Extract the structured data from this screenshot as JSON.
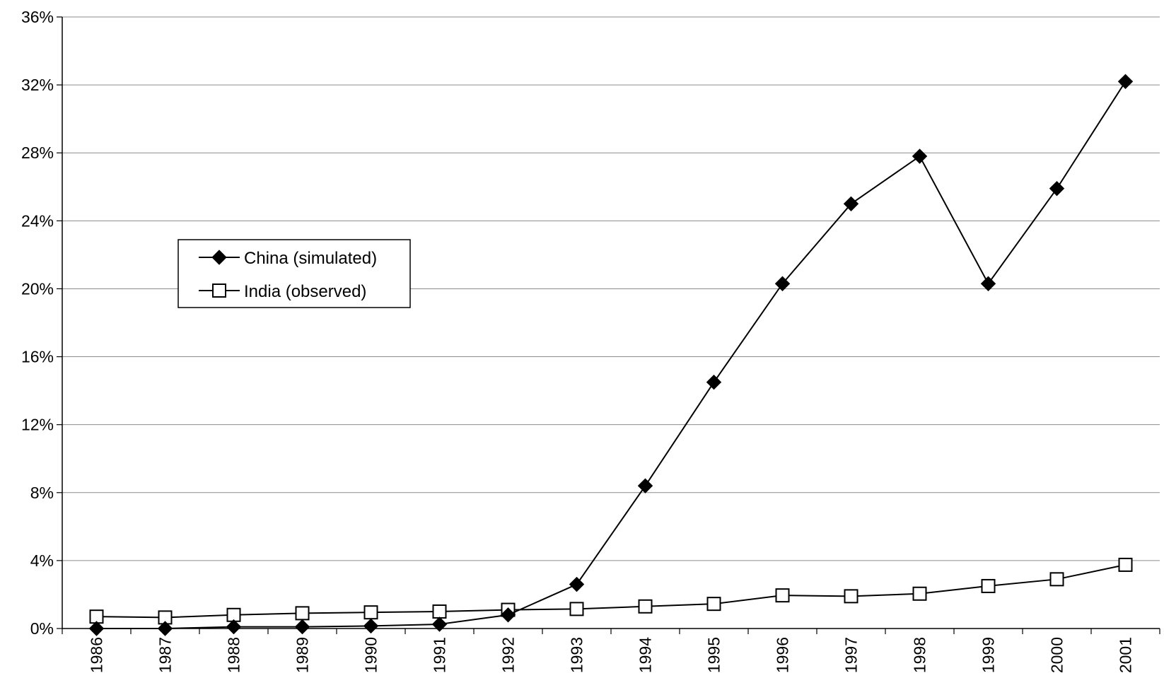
{
  "chart_data": {
    "type": "line",
    "title": "",
    "xlabel": "",
    "ylabel": "",
    "categories": [
      "1986",
      "1987",
      "1988",
      "1989",
      "1990",
      "1991",
      "1992",
      "1993",
      "1994",
      "1995",
      "1996",
      "1997",
      "1998",
      "1999",
      "2000",
      "2001"
    ],
    "ylim": [
      0,
      36
    ],
    "yticks": [
      0,
      4,
      8,
      12,
      16,
      20,
      24,
      28,
      32,
      36
    ],
    "ytick_labels": [
      "0%",
      "4%",
      "8%",
      "12%",
      "16%",
      "20%",
      "24%",
      "28%",
      "32%",
      "36%"
    ],
    "grid": true,
    "legend_position": "upper-left",
    "series": [
      {
        "name": "China (simulated)",
        "marker": "filled-diamond",
        "values": [
          0.0,
          0.0,
          0.1,
          0.1,
          0.15,
          0.25,
          0.8,
          2.6,
          8.4,
          14.5,
          20.3,
          25.0,
          27.8,
          20.3,
          25.9,
          32.2
        ]
      },
      {
        "name": "India (observed)",
        "marker": "open-square",
        "values": [
          0.7,
          0.65,
          0.8,
          0.9,
          0.95,
          1.0,
          1.1,
          1.15,
          1.3,
          1.45,
          1.95,
          1.9,
          2.05,
          2.5,
          2.9,
          3.75
        ]
      }
    ]
  }
}
